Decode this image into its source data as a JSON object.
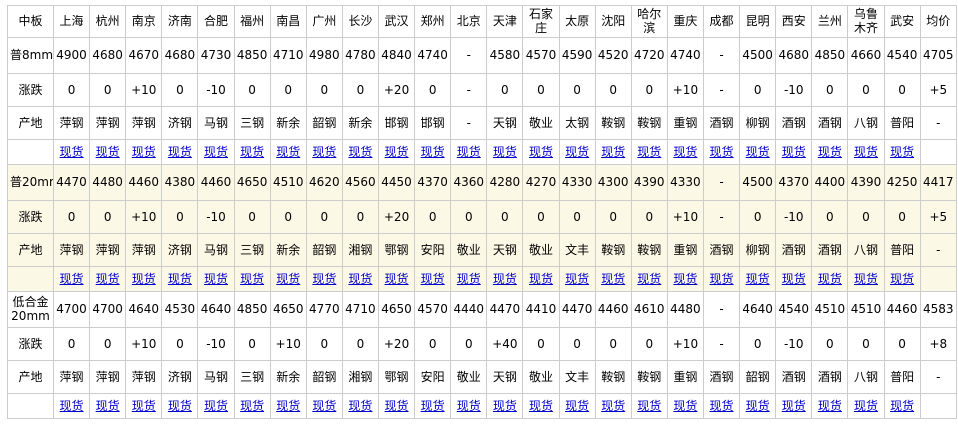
{
  "colors": {
    "border": "#cccccc",
    "alt_row_bg": "#fcf8e6",
    "link": "#0000cc",
    "text": "#000000",
    "page_bg": "#ffffff"
  },
  "table": {
    "columns": [
      "中板",
      "上海",
      "杭州",
      "南京",
      "济南",
      "合肥",
      "福州",
      "南昌",
      "广州",
      "长沙",
      "武汉",
      "郑州",
      "北京",
      "天津",
      "石家庄",
      "太原",
      "沈阳",
      "哈尔滨",
      "重庆",
      "成都",
      "昆明",
      "西安",
      "兰州",
      "乌鲁木齐",
      "武安",
      "均价"
    ],
    "row_labels": {
      "change": "涨跌",
      "origin": "产地"
    },
    "spot_link_text": "现货",
    "blocks": [
      {
        "product": "普8mm",
        "highlight": false,
        "prices": [
          "4900",
          "4680",
          "4670",
          "4680",
          "4730",
          "4850",
          "4710",
          "4980",
          "4780",
          "4840",
          "4740",
          "-",
          "4580",
          "4570",
          "4590",
          "4520",
          "4720",
          "4740",
          "-",
          "4500",
          "4680",
          "4850",
          "4660",
          "4540",
          "4705"
        ],
        "changes": [
          "0",
          "0",
          "+10",
          "0",
          "-10",
          "0",
          "0",
          "0",
          "0",
          "+20",
          "0",
          "-",
          "0",
          "0",
          "0",
          "0",
          "0",
          "+10",
          "-",
          "0",
          "-10",
          "0",
          "0",
          "0",
          "+5"
        ],
        "origins": [
          "萍钢",
          "萍钢",
          "萍钢",
          "济钢",
          "马钢",
          "三钢",
          "新余",
          "韶钢",
          "新余",
          "邯钢",
          "邯钢",
          "-",
          "天钢",
          "敬业",
          "太钢",
          "鞍钢",
          "鞍钢",
          "重钢",
          "酒钢",
          "柳钢",
          "酒钢",
          "酒钢",
          "八钢",
          "普阳",
          "-"
        ]
      },
      {
        "product": "普20mm",
        "highlight": true,
        "prices": [
          "4470",
          "4480",
          "4460",
          "4380",
          "4460",
          "4650",
          "4510",
          "4620",
          "4560",
          "4450",
          "4370",
          "4360",
          "4280",
          "4270",
          "4330",
          "4300",
          "4390",
          "4330",
          "-",
          "4500",
          "4370",
          "4400",
          "4390",
          "4250",
          "4417"
        ],
        "changes": [
          "0",
          "0",
          "+10",
          "0",
          "-10",
          "0",
          "0",
          "0",
          "0",
          "+20",
          "0",
          "0",
          "0",
          "0",
          "0",
          "0",
          "0",
          "+10",
          "-",
          "0",
          "-10",
          "0",
          "0",
          "0",
          "+5"
        ],
        "origins": [
          "萍钢",
          "萍钢",
          "萍钢",
          "济钢",
          "马钢",
          "三钢",
          "新余",
          "韶钢",
          "湘钢",
          "鄂钢",
          "安阳",
          "敬业",
          "天钢",
          "敬业",
          "文丰",
          "鞍钢",
          "鞍钢",
          "重钢",
          "酒钢",
          "柳钢",
          "酒钢",
          "酒钢",
          "八钢",
          "普阳",
          "-"
        ]
      },
      {
        "product": "低合金\n20mm",
        "highlight": false,
        "prices": [
          "4700",
          "4700",
          "4640",
          "4530",
          "4640",
          "4850",
          "4650",
          "4770",
          "4710",
          "4650",
          "4570",
          "4440",
          "4470",
          "4410",
          "4470",
          "4460",
          "4610",
          "4480",
          "-",
          "4640",
          "4540",
          "4510",
          "4510",
          "4460",
          "4583"
        ],
        "changes": [
          "0",
          "0",
          "+10",
          "0",
          "-10",
          "0",
          "+10",
          "0",
          "0",
          "+20",
          "0",
          "0",
          "+40",
          "0",
          "0",
          "0",
          "0",
          "+10",
          "-",
          "0",
          "-10",
          "0",
          "0",
          "0",
          "+8"
        ],
        "origins": [
          "萍钢",
          "萍钢",
          "萍钢",
          "济钢",
          "马钢",
          "三钢",
          "新余",
          "韶钢",
          "湘钢",
          "鄂钢",
          "安阳",
          "敬业",
          "天钢",
          "敬业",
          "文丰",
          "鞍钢",
          "鞍钢",
          "重钢",
          "酒钢",
          "韶钢",
          "酒钢",
          "酒钢",
          "八钢",
          "普阳",
          "-"
        ]
      }
    ]
  }
}
